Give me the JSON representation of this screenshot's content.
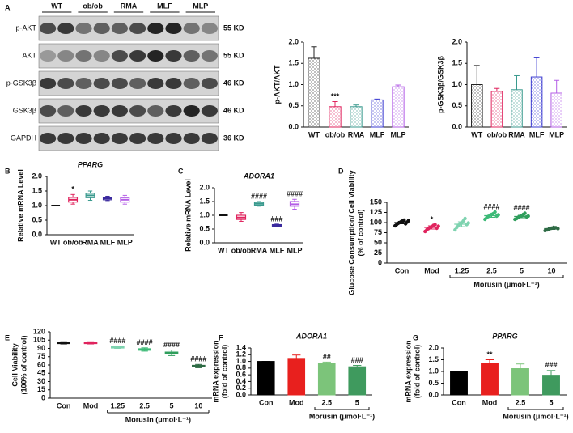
{
  "panels": [
    "A",
    "B",
    "C",
    "D",
    "E",
    "F",
    "G"
  ],
  "blot": {
    "lanes": [
      "WT",
      "ob/ob",
      "RMA",
      "MLF",
      "MLP"
    ],
    "rows": [
      {
        "name": "p-AKT",
        "size": "55 KD"
      },
      {
        "name": "AKT",
        "size": "55 KD"
      },
      {
        "name": "p-GSK3β",
        "size": "46 KD"
      },
      {
        "name": "GSK3β",
        "size": "46 KD"
      },
      {
        "name": "GAPDH",
        "size": "36 KD"
      }
    ]
  },
  "chart_data": [
    {
      "type": "bar",
      "fill_style": "dotted",
      "ylabel": [
        "p-AKT/AKT"
      ],
      "categories": [
        "WT",
        "ob/ob",
        "RMA",
        "MLF",
        "MLP"
      ],
      "values": [
        1.62,
        0.48,
        0.48,
        0.64,
        0.95
      ],
      "errors": [
        0.27,
        0.12,
        0.04,
        0.02,
        0.04
      ],
      "colors": [
        "#222222",
        "#e0245e",
        "#3a9a8e",
        "#3b3bd1",
        "#b45ee6"
      ],
      "annotations": [
        null,
        "***",
        null,
        null,
        null
      ],
      "ylim": [
        0,
        2.0
      ],
      "yticks": [
        {
          "value": 0,
          "label": "0.0"
        },
        0.5,
        {
          "value": 1,
          "label": "1.0"
        },
        1.5,
        {
          "value": 2,
          "label": "2.0"
        }
      ]
    },
    {
      "type": "bar",
      "fill_style": "dotted",
      "ylabel": [
        "p-GSK3β/GSK3β"
      ],
      "categories": [
        "WT",
        "ob/ob",
        "RMA",
        "MLF",
        "MLP"
      ],
      "values": [
        1.0,
        0.84,
        0.88,
        1.18,
        0.8
      ],
      "errors": [
        0.45,
        0.07,
        0.33,
        0.45,
        0.3
      ],
      "colors": [
        "#222222",
        "#e0245e",
        "#3a9a8e",
        "#3b3bd1",
        "#b45ee6"
      ],
      "ylim": [
        0,
        2.0
      ],
      "yticks": [
        {
          "value": 0,
          "label": "0.0"
        },
        0.5,
        {
          "value": 1,
          "label": "1.0"
        },
        1.5,
        {
          "value": 2,
          "label": "2.0"
        }
      ]
    },
    {
      "type": "box",
      "title": "PPARG",
      "ylabel": [
        "Relative  mRNA Level"
      ],
      "categories": [
        "WT",
        "ob/ob",
        "RMA",
        "MLF",
        "MLP"
      ],
      "stats": {
        "min": [
          1.0,
          1.05,
          1.18,
          1.17,
          1.05
        ],
        "q1": [
          1.0,
          1.12,
          1.27,
          1.2,
          1.12
        ],
        "median": [
          1.0,
          1.2,
          1.35,
          1.25,
          1.2
        ],
        "q3": [
          1.0,
          1.28,
          1.42,
          1.28,
          1.27
        ],
        "max": [
          1.0,
          1.38,
          1.5,
          1.32,
          1.35
        ]
      },
      "colors": [
        "#111111",
        "#e0245e",
        "#3a9a8e",
        "#3b2a9e",
        "#b45ee6"
      ],
      "annotations": [
        null,
        "*",
        null,
        null,
        null
      ],
      "ylim": [
        0,
        2.0
      ],
      "yticks": [
        {
          "value": 0,
          "label": "0.0"
        },
        0.5,
        {
          "value": 1,
          "label": "1.0"
        },
        1.5,
        {
          "value": 2,
          "label": "2.0"
        }
      ]
    },
    {
      "type": "box",
      "title": "ADORA1",
      "ylabel": [
        "Relative  mRNA Level"
      ],
      "categories": [
        "WT",
        "ob/ob",
        "RMA",
        "MLF",
        "MLP"
      ],
      "stats": {
        "min": [
          1.0,
          0.78,
          1.33,
          0.58,
          1.22
        ],
        "q1": [
          1.0,
          0.85,
          1.37,
          0.6,
          1.33
        ],
        "median": [
          1.0,
          0.92,
          1.42,
          0.63,
          1.4
        ],
        "q3": [
          1.0,
          1.0,
          1.47,
          0.66,
          1.5
        ],
        "max": [
          1.0,
          1.1,
          1.5,
          0.68,
          1.58
        ]
      },
      "colors": [
        "#111111",
        "#e0245e",
        "#3a9a8e",
        "#3b2a9e",
        "#b45ee6"
      ],
      "annotations": [
        null,
        null,
        "####",
        "###",
        "####"
      ],
      "ylim": [
        0,
        2.0
      ],
      "yticks": [
        {
          "value": 0,
          "label": "0.0"
        },
        0.5,
        {
          "value": 1,
          "label": "1.0"
        },
        1.5,
        {
          "value": 2,
          "label": "2.0"
        }
      ]
    },
    {
      "type": "dot",
      "ylabel": [
        "Glucose Consumption/ Cell Viability",
        "(% of control)"
      ],
      "xlabel": "Morusin (μmol·L⁻¹)",
      "categories": [
        "Con",
        "Mod",
        "1.25",
        "2.5",
        "5",
        "10"
      ],
      "values": [
        100,
        88,
        96,
        117,
        115,
        85
      ],
      "errors": [
        3,
        4,
        6,
        4,
        3,
        2
      ],
      "points": [
        [
          92,
          95,
          98,
          100,
          102,
          104,
          106,
          97,
          101,
          105
        ],
        [
          78,
          82,
          85,
          88,
          90,
          93,
          95,
          86,
          91
        ],
        [
          82,
          88,
          93,
          97,
          100,
          104,
          110,
          95,
          99
        ],
        [
          108,
          112,
          115,
          118,
          120,
          122,
          126,
          116,
          119
        ],
        [
          108,
          110,
          113,
          115,
          117,
          120,
          123,
          114,
          116
        ],
        [
          80,
          82,
          84,
          86,
          88,
          87,
          85
        ]
      ],
      "colors": [
        "#111111",
        "#e0245e",
        "#7fd3b0",
        "#3dba77",
        "#2f9e5c",
        "#2e6b45"
      ],
      "annotations": [
        null,
        "*",
        null,
        "####",
        "####",
        null
      ],
      "ylim": [
        0,
        150
      ],
      "yticks": [
        0,
        25,
        50,
        75,
        100,
        125,
        150
      ]
    },
    {
      "type": "dot",
      "ylabel": [
        "Cell Viability",
        "(100% of control)"
      ],
      "xlabel": "Morusin (μmol·L⁻¹)",
      "categories": [
        "Con",
        "Mod",
        "1.25",
        "2.5",
        "5",
        "10"
      ],
      "values": [
        100,
        100,
        92,
        88,
        82,
        58
      ],
      "errors": [
        2,
        2,
        2,
        3,
        5,
        3
      ],
      "colors": [
        "#111111",
        "#e0245e",
        "#7fd3b0",
        "#3dba77",
        "#2f9e5c",
        "#2e6b45"
      ],
      "annotations": [
        null,
        null,
        "####",
        "####",
        "####",
        "####"
      ],
      "ylim": [
        0,
        120
      ],
      "yticks": [
        0,
        15,
        30,
        45,
        60,
        75,
        90,
        105,
        120
      ]
    },
    {
      "type": "bar",
      "fill_style": "solid",
      "title": "ADORA1",
      "ylabel": [
        "mRNA expression",
        "(fold of control)"
      ],
      "xlabel": "Morusin (μmol·L⁻¹)",
      "categories": [
        "Con",
        "Mod",
        "2.5",
        "5"
      ],
      "values": [
        1.0,
        1.09,
        0.94,
        0.84
      ],
      "errors": [
        0,
        0.1,
        0.04,
        0.04
      ],
      "colors": [
        "#000000",
        "#e8201e",
        "#7cc47a",
        "#3f9a5e"
      ],
      "annotations": [
        null,
        null,
        "##",
        "###"
      ],
      "ylim": [
        0,
        1.4
      ],
      "yticks": [
        {
          "value": 0,
          "label": "0.0"
        },
        0.2,
        0.4,
        0.6,
        0.8,
        {
          "value": 1,
          "label": "1.0"
        },
        1.2,
        1.4
      ]
    },
    {
      "type": "bar",
      "fill_style": "solid",
      "title": "PPARG",
      "ylabel": [
        "mRNA expression",
        "(fold of control)"
      ],
      "xlabel": "Morusin (μmol·L⁻¹)",
      "categories": [
        "Con",
        "Mod",
        "2.5",
        "5"
      ],
      "values": [
        1.0,
        1.35,
        1.12,
        0.84
      ],
      "errors": [
        0,
        0.15,
        0.2,
        0.2
      ],
      "colors": [
        "#000000",
        "#e8201e",
        "#7cc47a",
        "#3f9a5e"
      ],
      "annotations": [
        null,
        "**",
        null,
        "###"
      ],
      "ylim": [
        0,
        2.0
      ],
      "yticks": [
        {
          "value": 0,
          "label": "0.0"
        },
        0.5,
        {
          "value": 1,
          "label": "1.0"
        },
        1.5,
        {
          "value": 2,
          "label": "2.0"
        }
      ]
    }
  ]
}
